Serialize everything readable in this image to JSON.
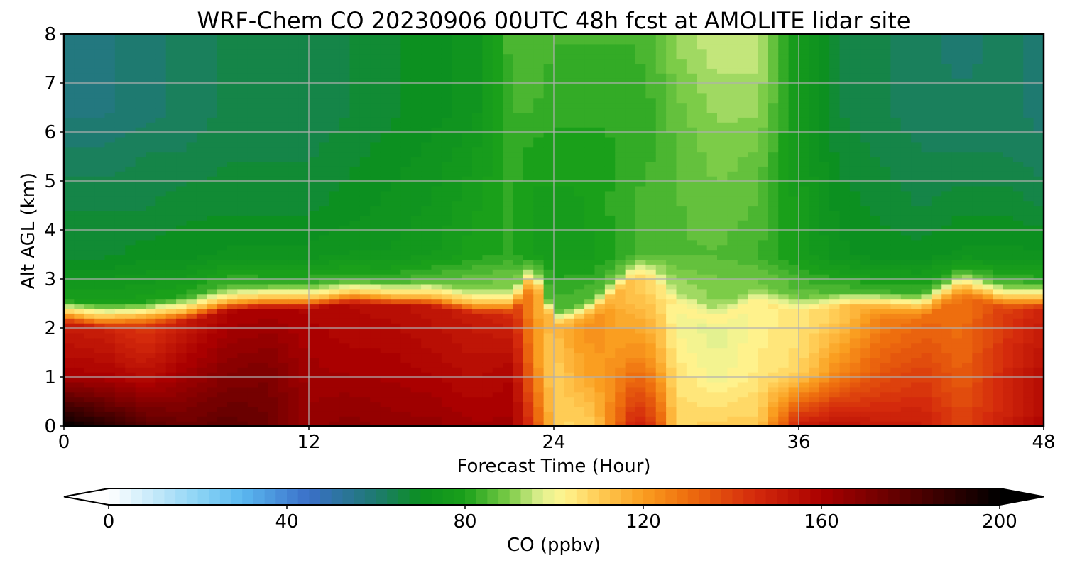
{
  "chart_data": {
    "type": "heatmap",
    "title": "WRF-Chem CO  20230906 00UTC 48h fcst at AMOLITE lidar site",
    "xlabel": "Forecast Time (Hour)",
    "ylabel": "Alt AGL (km)",
    "xlim": [
      0,
      48
    ],
    "ylim": [
      0,
      8
    ],
    "xticks": [
      "0",
      "12",
      "24",
      "36",
      "48"
    ],
    "yticks": [
      "0",
      "1",
      "2",
      "3",
      "4",
      "5",
      "6",
      "7",
      "8"
    ],
    "grid": true,
    "colorbar": {
      "label": "CO  (ppbv)",
      "range": [
        0,
        200
      ],
      "extend": "both",
      "ticks": [
        "0",
        "40",
        "80",
        "120",
        "160",
        "200"
      ],
      "stops": [
        [
          0,
          "#ffffff"
        ],
        [
          20,
          "#8dd4f5"
        ],
        [
          30,
          "#5bb8f0"
        ],
        [
          45,
          "#3a6fc8"
        ],
        [
          60,
          "#1e7a70"
        ],
        [
          70,
          "#0c9020"
        ],
        [
          80,
          "#1aa01a"
        ],
        [
          90,
          "#7ccc48"
        ],
        [
          97,
          "#e0f090"
        ],
        [
          102,
          "#fff590"
        ],
        [
          110,
          "#ffcc55"
        ],
        [
          120,
          "#fa9e20"
        ],
        [
          130,
          "#ee6e0e"
        ],
        [
          145,
          "#d42a0c"
        ],
        [
          160,
          "#aa0000"
        ],
        [
          180,
          "#550000"
        ],
        [
          200,
          "#000000"
        ]
      ]
    },
    "x": [
      0,
      2,
      4,
      6,
      8,
      10,
      12,
      14,
      16,
      18,
      20,
      22,
      23,
      24,
      25,
      26,
      28,
      29,
      30,
      32,
      34,
      36,
      38,
      40,
      42,
      44,
      46,
      48
    ],
    "alts": [
      0,
      0.25,
      0.5,
      0.75,
      1,
      1.25,
      1.5,
      1.75,
      2,
      2.25,
      2.5,
      2.75,
      3,
      3.5,
      4,
      4.5,
      5,
      5.5,
      6,
      6.5,
      7,
      7.5,
      8
    ],
    "series": [
      {
        "x": 0,
        "pbl": 2.25,
        "low": [
          200,
          160,
          150
        ],
        "upper": [
          70,
          68,
          66,
          62,
          58,
          56
        ]
      },
      {
        "x": 2,
        "pbl": 2.15,
        "low": [
          190,
          160,
          148
        ],
        "upper": [
          72,
          68,
          66,
          62,
          58,
          58
        ]
      },
      {
        "x": 4,
        "pbl": 2.2,
        "low": [
          180,
          155,
          140
        ],
        "upper": [
          72,
          70,
          66,
          64,
          60,
          60
        ]
      },
      {
        "x": 6,
        "pbl": 2.3,
        "low": [
          175,
          162,
          150
        ],
        "upper": [
          74,
          70,
          68,
          64,
          62,
          62
        ]
      },
      {
        "x": 8,
        "pbl": 2.5,
        "low": [
          178,
          168,
          158
        ],
        "upper": [
          78,
          72,
          68,
          66,
          64,
          64
        ]
      },
      {
        "x": 10,
        "pbl": 2.55,
        "low": [
          175,
          170,
          160
        ],
        "upper": [
          76,
          72,
          68,
          66,
          64,
          64
        ]
      },
      {
        "x": 12,
        "pbl": 2.55,
        "low": [
          165,
          162,
          158
        ],
        "upper": [
          76,
          72,
          68,
          66,
          64,
          64
        ]
      },
      {
        "x": 14,
        "pbl": 2.65,
        "low": [
          168,
          160,
          156
        ],
        "upper": [
          76,
          74,
          70,
          68,
          66,
          66
        ]
      },
      {
        "x": 16,
        "pbl": 2.6,
        "low": [
          165,
          160,
          155
        ],
        "upper": [
          76,
          74,
          72,
          70,
          68,
          68
        ]
      },
      {
        "x": 18,
        "pbl": 2.6,
        "low": [
          165,
          158,
          152
        ],
        "upper": [
          80,
          76,
          74,
          72,
          70,
          70
        ]
      },
      {
        "x": 20,
        "pbl": 2.45,
        "low": [
          162,
          155,
          150
        ],
        "upper": [
          82,
          80,
          78,
          76,
          72,
          72
        ]
      },
      {
        "x": 22,
        "pbl": 2.45,
        "low": [
          162,
          158,
          145
        ],
        "upper": [
          84,
          82,
          82,
          82,
          84,
          86
        ]
      },
      {
        "x": 23,
        "pbl": 3.0,
        "low": [
          140,
          125,
          120
        ],
        "upper": [
          80,
          78,
          78,
          80,
          84,
          86
        ]
      },
      {
        "x": 24,
        "pbl": 2.0,
        "low": [
          110,
          108,
          112
        ],
        "upper": [
          78,
          78,
          78,
          80,
          82,
          84
        ]
      },
      {
        "x": 25,
        "pbl": 2.1,
        "low": [
          108,
          115,
          120
        ],
        "upper": [
          78,
          78,
          78,
          80,
          82,
          84
        ]
      },
      {
        "x": 26,
        "pbl": 2.3,
        "low": [
          110,
          120,
          124
        ],
        "upper": [
          78,
          78,
          80,
          80,
          82,
          84
        ]
      },
      {
        "x": 28,
        "pbl": 3.0,
        "low": [
          150,
          125,
          110
        ],
        "upper": [
          84,
          84,
          84,
          82,
          82,
          84
        ]
      },
      {
        "x": 29,
        "pbl": 2.9,
        "low": [
          140,
          120,
          108
        ],
        "upper": [
          86,
          86,
          86,
          84,
          84,
          86
        ]
      },
      {
        "x": 30,
        "pbl": 2.4,
        "low": [
          108,
          105,
          100
        ],
        "upper": [
          86,
          86,
          86,
          86,
          88,
          92
        ]
      },
      {
        "x": 32,
        "pbl": 2.1,
        "low": [
          110,
          100,
          97
        ],
        "upper": [
          84,
          86,
          88,
          90,
          92,
          96
        ]
      },
      {
        "x": 34,
        "pbl": 2.5,
        "low": [
          110,
          104,
          102
        ],
        "upper": [
          82,
          84,
          86,
          88,
          92,
          96
        ]
      },
      {
        "x": 36,
        "pbl": 2.3,
        "low": [
          150,
          108,
          105
        ],
        "upper": [
          80,
          78,
          78,
          76,
          76,
          76
        ]
      },
      {
        "x": 38,
        "pbl": 2.4,
        "low": [
          155,
          125,
          110
        ],
        "upper": [
          78,
          72,
          70,
          68,
          66,
          66
        ]
      },
      {
        "x": 40,
        "pbl": 2.4,
        "low": [
          150,
          135,
          125
        ],
        "upper": [
          76,
          70,
          68,
          66,
          64,
          64
        ]
      },
      {
        "x": 42,
        "pbl": 2.35,
        "low": [
          150,
          140,
          130
        ],
        "upper": [
          76,
          70,
          66,
          64,
          62,
          62
        ]
      },
      {
        "x": 44,
        "pbl": 2.8,
        "low": [
          140,
          132,
          128
        ],
        "upper": [
          78,
          72,
          68,
          64,
          62,
          60
        ]
      },
      {
        "x": 46,
        "pbl": 2.55,
        "low": [
          148,
          145,
          140
        ],
        "upper": [
          78,
          72,
          68,
          64,
          62,
          62
        ]
      },
      {
        "x": 48,
        "pbl": 2.55,
        "low": [
          158,
          155,
          148
        ],
        "upper": [
          76,
          72,
          66,
          62,
          60,
          60
        ]
      }
    ]
  }
}
